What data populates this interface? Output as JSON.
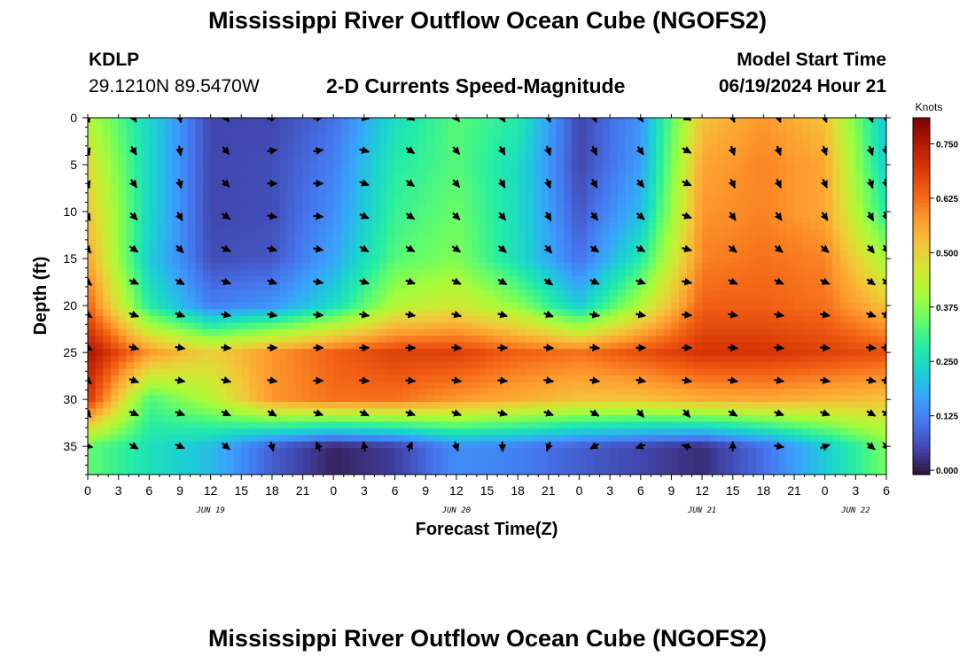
{
  "header": {
    "title": "Mississippi River Outflow Ocean Cube (NGOFS2)",
    "station_id": "KDLP",
    "station_coords": "29.1210N  89.5470W",
    "subtitle": "2-D Currents Speed-Magnitude",
    "model_start_label": "Model Start Time",
    "model_start_time": "06/19/2024 Hour 21"
  },
  "footer": {
    "title": "Mississippi River Outflow Ocean Cube (NGOFS2)"
  },
  "chart_data": {
    "type": "heatmap",
    "xlabel": "Forecast Time(Z)",
    "ylabel": "Depth (ft)",
    "x_range_hours": [
      0,
      78
    ],
    "x_tick_labels": [
      "0",
      "3",
      "6",
      "9",
      "12",
      "15",
      "18",
      "21",
      "0",
      "3",
      "6",
      "9",
      "12",
      "15",
      "18",
      "21",
      "0",
      "3",
      "6",
      "9",
      "12",
      "15",
      "18",
      "21",
      "0",
      "3",
      "6"
    ],
    "date_labels": [
      {
        "text": "JUN 19",
        "at_hour": 12
      },
      {
        "text": "JUN 20",
        "at_hour": 36
      },
      {
        "text": "JUN 21",
        "at_hour": 60
      },
      {
        "text": "JUN 22",
        "at_hour": 75
      }
    ],
    "y_range_ft": [
      0,
      38
    ],
    "y_inverted": true,
    "y_tick_labels": [
      "0",
      "5",
      "10",
      "15",
      "20",
      "25",
      "30",
      "35"
    ],
    "colorbar": {
      "units": "Knots",
      "range": [
        -0.01,
        0.81
      ],
      "tick_labels": [
        "0.750",
        "0.625",
        "0.500",
        "0.375",
        "0.250",
        "0.125",
        "0.000"
      ],
      "colors": [
        "#30123b",
        "#4145ab",
        "#4675ed",
        "#39a2fc",
        "#1bcfd4",
        "#24eca6",
        "#61fc6c",
        "#a4fc3b",
        "#d1e834",
        "#f3c63a",
        "#fe9b2d",
        "#f36315",
        "#d93806",
        "#b11901",
        "#7a0402"
      ]
    },
    "depths_ft": [
      0,
      5,
      10,
      15,
      20,
      25,
      30,
      35
    ],
    "hours": [
      0,
      6,
      12,
      18,
      24,
      30,
      36,
      42,
      48,
      54,
      60,
      66,
      72,
      78
    ],
    "speed_knots": [
      [
        0.42,
        0.24,
        0.05,
        0.05,
        0.1,
        0.25,
        0.33,
        0.28,
        0.05,
        0.15,
        0.52,
        0.58,
        0.52,
        0.2
      ],
      [
        0.48,
        0.24,
        0.05,
        0.06,
        0.12,
        0.28,
        0.33,
        0.25,
        0.05,
        0.16,
        0.56,
        0.6,
        0.56,
        0.22
      ],
      [
        0.52,
        0.24,
        0.05,
        0.06,
        0.14,
        0.3,
        0.35,
        0.25,
        0.07,
        0.2,
        0.58,
        0.6,
        0.56,
        0.28
      ],
      [
        0.56,
        0.22,
        0.06,
        0.07,
        0.17,
        0.33,
        0.37,
        0.25,
        0.1,
        0.28,
        0.6,
        0.62,
        0.6,
        0.4
      ],
      [
        0.64,
        0.28,
        0.12,
        0.15,
        0.25,
        0.42,
        0.46,
        0.38,
        0.22,
        0.42,
        0.64,
        0.64,
        0.62,
        0.52
      ],
      [
        0.76,
        0.58,
        0.5,
        0.58,
        0.64,
        0.68,
        0.68,
        0.64,
        0.62,
        0.66,
        0.7,
        0.7,
        0.68,
        0.66
      ],
      [
        0.7,
        0.32,
        0.42,
        0.58,
        0.62,
        0.62,
        0.58,
        0.55,
        0.52,
        0.52,
        0.55,
        0.56,
        0.54,
        0.52
      ],
      [
        0.34,
        0.26,
        0.2,
        0.08,
        0.01,
        0.04,
        0.14,
        0.12,
        0.08,
        0.05,
        0.02,
        0.1,
        0.22,
        0.36
      ]
    ],
    "vector_grid": {
      "hours": [
        0,
        4.5,
        9,
        13.5,
        18,
        22.5,
        27,
        31.5,
        36,
        40.5,
        45,
        49.5,
        54,
        58.5,
        63,
        67.5,
        72,
        76.5,
        78
      ],
      "depths_ft": [
        0,
        3.5,
        7,
        10.5,
        14,
        17.5,
        21,
        24.5,
        28,
        31.5,
        35
      ],
      "direction_deg": [
        [
          160,
          160,
          160,
          150,
          140,
          130,
          120,
          120,
          130,
          140,
          100
        ],
        [
          150,
          150,
          145,
          135,
          125,
          115,
          110,
          105,
          110,
          115,
          120
        ],
        [
          170,
          170,
          165,
          150,
          135,
          120,
          110,
          100,
          100,
          110,
          115
        ],
        [
          145,
          140,
          135,
          125,
          115,
          110,
          100,
          95,
          105,
          115,
          130
        ],
        [
          75,
          80,
          90,
          100,
          105,
          110,
          100,
          90,
          100,
          120,
          165
        ],
        [
          80,
          80,
          90,
          95,
          100,
          100,
          95,
          90,
          90,
          110,
          -20
        ],
        [
          100,
          105,
          110,
          115,
          120,
          110,
          100,
          90,
          95,
          115,
          -10
        ],
        [
          120,
          125,
          125,
          125,
          120,
          110,
          100,
          90,
          95,
          110,
          20
        ],
        [
          140,
          140,
          140,
          135,
          125,
          115,
          105,
          95,
          100,
          110,
          160
        ],
        [
          150,
          150,
          150,
          140,
          130,
          120,
          105,
          90,
          95,
          105,
          180
        ],
        [
          160,
          160,
          160,
          150,
          140,
          125,
          110,
          95,
          100,
          110,
          200
        ],
        [
          160,
          155,
          150,
          140,
          125,
          115,
          100,
          95,
          100,
          120,
          240
        ],
        [
          150,
          145,
          140,
          130,
          120,
          110,
          100,
          90,
          100,
          140,
          250
        ],
        [
          120,
          120,
          115,
          110,
          105,
          100,
          95,
          90,
          100,
          140,
          285
        ],
        [
          160,
          160,
          155,
          145,
          130,
          115,
          100,
          95,
          100,
          120,
          0
        ],
        [
          160,
          160,
          155,
          145,
          130,
          115,
          100,
          95,
          100,
          110,
          100
        ],
        [
          160,
          160,
          155,
          145,
          130,
          115,
          100,
          95,
          100,
          110,
          70
        ],
        [
          160,
          160,
          160,
          150,
          140,
          125,
          110,
          95,
          100,
          120,
          130
        ],
        [
          170,
          170,
          165,
          155,
          145,
          130,
          110,
          95,
          100,
          120,
          140
        ]
      ]
    }
  }
}
